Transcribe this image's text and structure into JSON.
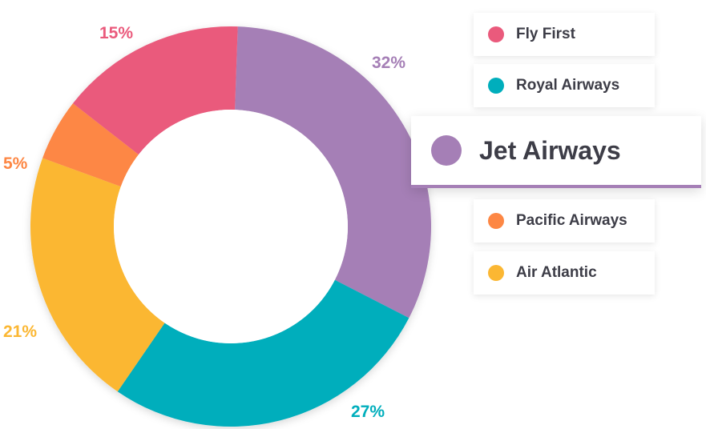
{
  "chart_data": {
    "type": "pie",
    "variant": "donut",
    "slices": [
      {
        "name": "Jet Airways",
        "value": 32,
        "label": "32%",
        "color": "#a57fb6"
      },
      {
        "name": "Royal Airways",
        "value": 27,
        "label": "27%",
        "color": "#00aebc"
      },
      {
        "name": "Air Atlantic",
        "value": 21,
        "label": "21%",
        "color": "#fbb733"
      },
      {
        "name": "Pacific Airways",
        "value": 5,
        "label": "5%",
        "color": "#fd8744"
      },
      {
        "name": "Fly First",
        "value": 15,
        "label": "15%",
        "color": "#ea5a7c"
      }
    ],
    "legend": [
      {
        "name": "Fly First",
        "color": "#ea5a7c",
        "highlighted": false
      },
      {
        "name": "Royal Airways",
        "color": "#00aebc",
        "highlighted": false
      },
      {
        "name": "Jet Airways",
        "color": "#a57fb6",
        "highlighted": true
      },
      {
        "name": "Pacific Airways",
        "color": "#fd8744",
        "highlighted": false
      },
      {
        "name": "Air Atlantic",
        "color": "#fbb733",
        "highlighted": false
      }
    ],
    "legend_position": "right"
  }
}
